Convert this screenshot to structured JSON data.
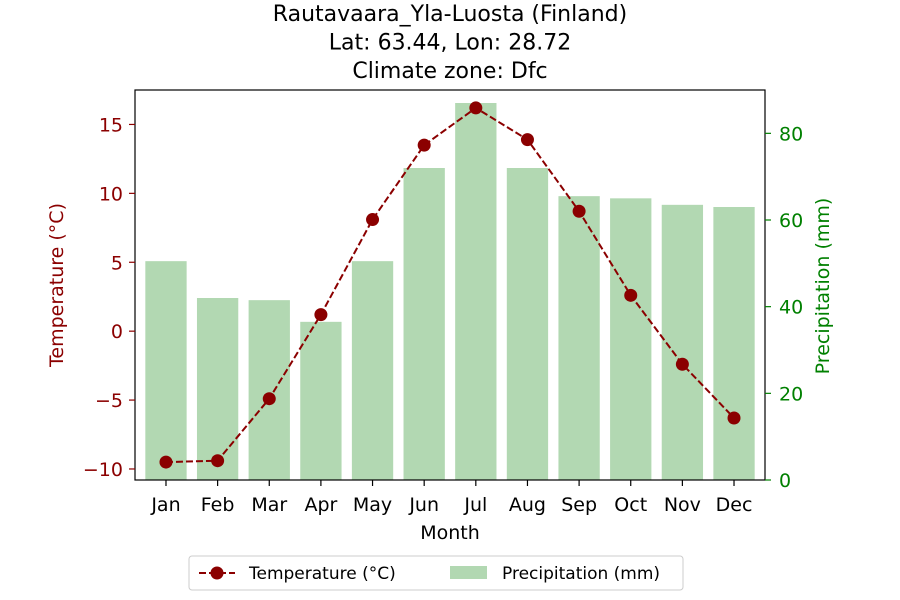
{
  "chart_data": {
    "type": "bar+line",
    "title_lines": [
      "Rautavaara_Yla-Luosta (Finland)",
      "Lat: 63.44, Lon: 28.72",
      "Climate zone: Dfc"
    ],
    "xlabel": "Month",
    "ylabel_left": "Temperature (°C)",
    "ylabel_right": "Precipitation (mm)",
    "categories": [
      "Jan",
      "Feb",
      "Mar",
      "Apr",
      "May",
      "Jun",
      "Jul",
      "Aug",
      "Sep",
      "Oct",
      "Nov",
      "Dec"
    ],
    "temperature": {
      "name": "Temperature (°C)",
      "values": [
        -9.5,
        -9.4,
        -4.9,
        1.2,
        8.1,
        13.5,
        16.2,
        13.9,
        8.7,
        2.6,
        -2.4,
        -6.3
      ],
      "color": "#8b0000"
    },
    "precipitation": {
      "name": "Precipitation (mm)",
      "values": [
        50.5,
        42.0,
        41.5,
        36.5,
        50.5,
        72.0,
        87.0,
        72.0,
        65.5,
        65.0,
        63.5,
        63.0
      ],
      "color": "#b2d8b2"
    },
    "y_left": {
      "min": -10.8,
      "max": 17.5,
      "ticks": [
        -10,
        -5,
        0,
        5,
        10,
        15
      ],
      "color": "#8b0000"
    },
    "y_right": {
      "min": 0,
      "max": 90.0,
      "ticks": [
        0,
        20,
        40,
        60,
        80
      ],
      "color": "#008000"
    },
    "legend_position": "bottom-center"
  }
}
